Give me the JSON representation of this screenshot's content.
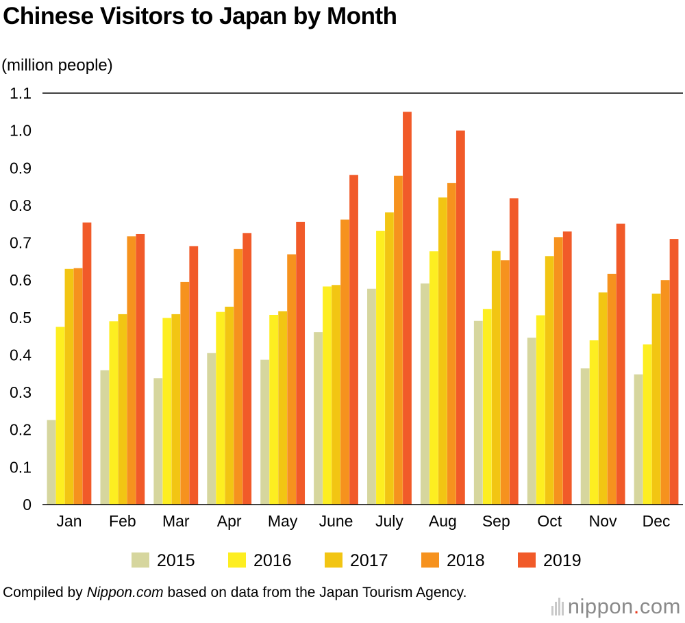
{
  "chart_data": {
    "type": "bar",
    "title": "Chinese Visitors to Japan by Month",
    "ylabel": "(million people)",
    "xlabel": "",
    "ylim": [
      0,
      1.1
    ],
    "yticks": [
      "0",
      "0.1",
      "0.2",
      "0.3",
      "0.4",
      "0.5",
      "0.6",
      "0.7",
      "0.8",
      "0.9",
      "1.0",
      "1.1"
    ],
    "grid": false,
    "legend": "bottom",
    "categories": [
      "Jan",
      "Feb",
      "Mar",
      "Apr",
      "May",
      "June",
      "July",
      "Aug",
      "Sep",
      "Oct",
      "Nov",
      "Dec"
    ],
    "series": [
      {
        "name": "2015",
        "color": "#d6d69e",
        "values": [
          0.226,
          0.359,
          0.338,
          0.405,
          0.387,
          0.461,
          0.577,
          0.591,
          0.491,
          0.446,
          0.364,
          0.348
        ]
      },
      {
        "name": "2016",
        "color": "#fdee21",
        "values": [
          0.475,
          0.49,
          0.499,
          0.515,
          0.507,
          0.583,
          0.732,
          0.677,
          0.523,
          0.506,
          0.439,
          0.428
        ]
      },
      {
        "name": "2017",
        "color": "#f2c513",
        "values": [
          0.63,
          0.509,
          0.509,
          0.529,
          0.517,
          0.587,
          0.781,
          0.821,
          0.678,
          0.664,
          0.567,
          0.564
        ]
      },
      {
        "name": "2018",
        "color": "#f6921e",
        "values": [
          0.632,
          0.717,
          0.595,
          0.683,
          0.669,
          0.762,
          0.879,
          0.86,
          0.653,
          0.715,
          0.617,
          0.6
        ]
      },
      {
        "name": "2019",
        "color": "#f15a29",
        "values": [
          0.754,
          0.723,
          0.691,
          0.726,
          0.756,
          0.881,
          1.05,
          1.0,
          0.819,
          0.73,
          0.751,
          0.71
        ]
      }
    ]
  },
  "footer": {
    "source_prefix": "Compiled by ",
    "source_italic": "Nippon.com",
    "source_suffix": " based on data from the Japan Tourism Agency.",
    "logo_text": "nippon",
    "logo_dot": ".",
    "logo_tld": "com"
  }
}
